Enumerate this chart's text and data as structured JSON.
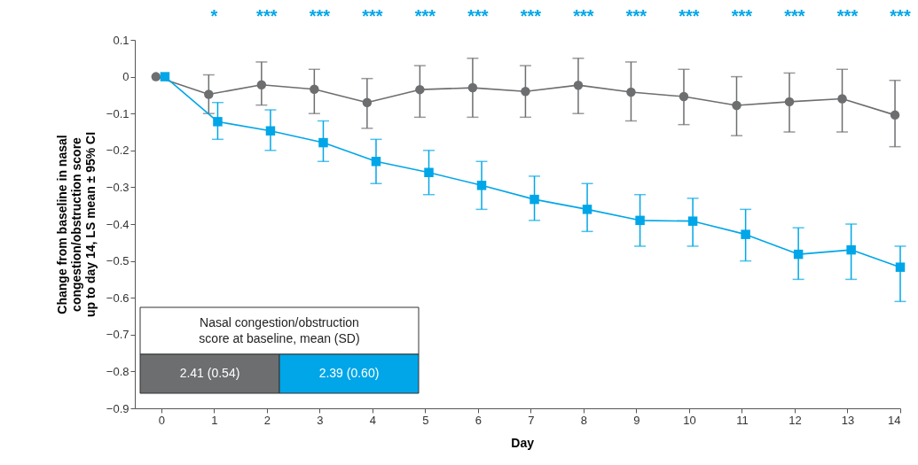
{
  "chart_data": {
    "type": "line",
    "xlabel": "Day",
    "ylabel": "Change from baseline in nasal congestion/obstruction score up to day 14, LS mean ± 95% CI",
    "xlim": [
      -0.5,
      14
    ],
    "xticks": [
      0,
      1,
      2,
      3,
      4,
      5,
      6,
      7,
      8,
      9,
      10,
      11,
      12,
      13,
      14
    ],
    "ylim": [
      -0.9,
      0.1
    ],
    "yticks": [
      0.1,
      0,
      {
        "value": -0.1,
        "label": "−0.1"
      },
      {
        "value": -0.2,
        "label": "−0.2"
      },
      {
        "value": -0.3,
        "label": "−0.3"
      },
      {
        "value": -0.4,
        "label": "−0.4"
      },
      {
        "value": -0.5,
        "label": "−0.5"
      },
      {
        "value": -0.6,
        "label": "−0.6"
      },
      {
        "value": -0.7,
        "label": "−0.7"
      },
      {
        "value": -0.8,
        "label": "−0.8"
      },
      {
        "value": -0.9,
        "label": "−0.9"
      }
    ],
    "grid": false,
    "line_style": "solid",
    "series": [
      {
        "color": "#6d6e70",
        "marker": "circle",
        "x": [
          -0.1,
          0.9,
          1.9,
          2.9,
          3.9,
          4.9,
          5.9,
          6.9,
          7.9,
          8.9,
          9.9,
          10.9,
          11.9,
          12.9,
          13.9
        ],
        "values": [
          0,
          -0.048,
          -0.022,
          -0.034,
          -0.07,
          -0.035,
          -0.03,
          -0.04,
          -0.023,
          -0.042,
          -0.054,
          -0.078,
          -0.068,
          -0.06,
          -0.104
        ],
        "errors": [
          null,
          [
            -0.1,
            0.005
          ],
          [
            -0.077,
            0.04
          ],
          [
            -0.1,
            0.02
          ],
          [
            -0.14,
            -0.005
          ],
          [
            -0.11,
            0.03
          ],
          [
            -0.11,
            0.05
          ],
          [
            -0.11,
            0.03
          ],
          [
            -0.1,
            0.05
          ],
          [
            -0.12,
            0.04
          ],
          [
            -0.13,
            0.02
          ],
          [
            -0.16,
            0.0
          ],
          [
            -0.15,
            0.01
          ],
          [
            -0.15,
            0.02
          ],
          [
            -0.19,
            -0.01
          ]
        ]
      },
      {
        "color": "#00a6e8",
        "marker": "square",
        "x": [
          0.07,
          1.07,
          2.07,
          3.07,
          4.07,
          5.07,
          6.07,
          7.07,
          8.07,
          9.07,
          10.07,
          11.07,
          12.07,
          13.07,
          14.0
        ],
        "values": [
          0,
          -0.122,
          -0.147,
          -0.179,
          -0.23,
          -0.26,
          -0.295,
          -0.333,
          -0.36,
          -0.39,
          -0.392,
          -0.428,
          -0.482,
          -0.47,
          -0.517
        ],
        "errors": [
          null,
          [
            -0.17,
            -0.07
          ],
          [
            -0.2,
            -0.09
          ],
          [
            -0.23,
            -0.12
          ],
          [
            -0.29,
            -0.17
          ],
          [
            -0.32,
            -0.2
          ],
          [
            -0.36,
            -0.23
          ],
          [
            -0.39,
            -0.27
          ],
          [
            -0.42,
            -0.29
          ],
          [
            -0.46,
            -0.32
          ],
          [
            -0.46,
            -0.33
          ],
          [
            -0.5,
            -0.36
          ],
          [
            -0.55,
            -0.41
          ],
          [
            -0.55,
            -0.4
          ],
          [
            -0.61,
            -0.46
          ]
        ]
      }
    ],
    "annotations": [
      "*",
      "***",
      "***",
      "***",
      "***",
      "***",
      "***",
      "***",
      "***",
      "***",
      "***",
      "***",
      "***",
      "***",
      "Nasal congestion/obstruction score at baseline, mean (SD)",
      "2.41 (0.54)",
      "2.39 (0.60)"
    ]
  }
}
